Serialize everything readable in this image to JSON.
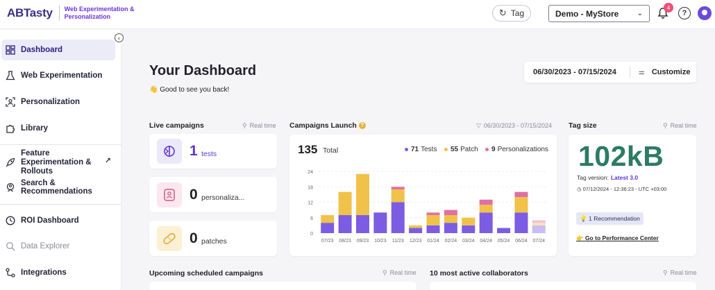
{
  "header": {
    "logo_text": "ABTasty",
    "logo_subtitle": "Web Experimentation & Personalization",
    "tag_button": "Tag",
    "store_selector": "Demo - MyStore",
    "notification_count": "4",
    "help_label": "?"
  },
  "sidebar": {
    "items": [
      {
        "label": "Dashboard",
        "icon": "dashboard-icon"
      },
      {
        "label": "Web Experimentation",
        "icon": "flask-icon"
      },
      {
        "label": "Personalization",
        "icon": "person-focus-icon"
      },
      {
        "label": "Library",
        "icon": "puzzle-icon"
      },
      {
        "label": "Feature Experimentation & Rollouts",
        "icon": "rocket-icon"
      },
      {
        "label": "Search & Recommendations",
        "icon": "search-badge-icon"
      },
      {
        "label": "ROI Dashboard",
        "icon": "clock-icon"
      },
      {
        "label": "Data Explorer",
        "icon": "magnifier-icon"
      },
      {
        "label": "Integrations",
        "icon": "integrations-icon"
      }
    ]
  },
  "main": {
    "title": "Your Dashboard",
    "greeting": "👋 Good to see you back!",
    "date_range": "06/30/2023 - 07/15/2024",
    "customize": "Customize"
  },
  "live_campaigns": {
    "title": "Live campaigns",
    "realtime": "Real time",
    "items": [
      {
        "count": "1",
        "label": "tests"
      },
      {
        "count": "0",
        "label": "personaliza..."
      },
      {
        "count": "0",
        "label": "patches"
      }
    ]
  },
  "campaigns_launch": {
    "title": "Campaigns Launch",
    "filter_range": "06/30/2023 - 07/15/2024",
    "total": "135",
    "total_label": "Total",
    "legend": [
      {
        "count": "71",
        "label": "Tests",
        "color": "#7b5ce3"
      },
      {
        "count": "55",
        "label": "Patch",
        "color": "#f0c24a"
      },
      {
        "count": "9",
        "label": "Personalizations",
        "color": "#e06fa4"
      }
    ]
  },
  "chart_data": {
    "type": "bar",
    "stacked": true,
    "title": "Campaigns Launch",
    "categories": [
      "07/23",
      "08/23",
      "09/23",
      "10/23",
      "11/23",
      "12/23",
      "01/24",
      "02/24",
      "03/24",
      "04/24",
      "05/24",
      "06/24",
      "07/24"
    ],
    "series": [
      {
        "name": "Tests",
        "color": "#7b5ce3",
        "values": [
          4,
          7,
          7,
          8,
          12,
          2,
          3,
          4,
          3,
          8,
          2,
          8,
          3
        ]
      },
      {
        "name": "Patch",
        "color": "#f0c24a",
        "values": [
          3,
          9,
          16,
          0,
          5,
          1,
          4,
          3,
          3,
          3,
          0,
          6,
          1
        ]
      },
      {
        "name": "Personalizations",
        "color": "#e06fa4",
        "values": [
          0,
          0,
          0,
          0,
          1,
          0,
          1,
          2,
          0,
          2,
          0,
          2,
          1
        ]
      }
    ],
    "yticks": [
      0,
      6,
      12,
      18,
      24
    ],
    "ylim": [
      0,
      24
    ],
    "grid": true
  },
  "tag_size": {
    "title": "Tag size",
    "realtime": "Real time",
    "value": "102kB",
    "version_label": "Tag version:",
    "version_value": "Latest 3.0",
    "date": "07/12/2024 - 12:36:23 - UTC +03:00",
    "recommendation": "💡 1 Recommendation",
    "perf_link": "👉 Go to Performance Center"
  },
  "upcoming": {
    "title": "Upcoming scheduled campaigns",
    "realtime": "Real time"
  },
  "collaborators": {
    "title": "10 most active collaborators",
    "realtime": "Real time"
  }
}
